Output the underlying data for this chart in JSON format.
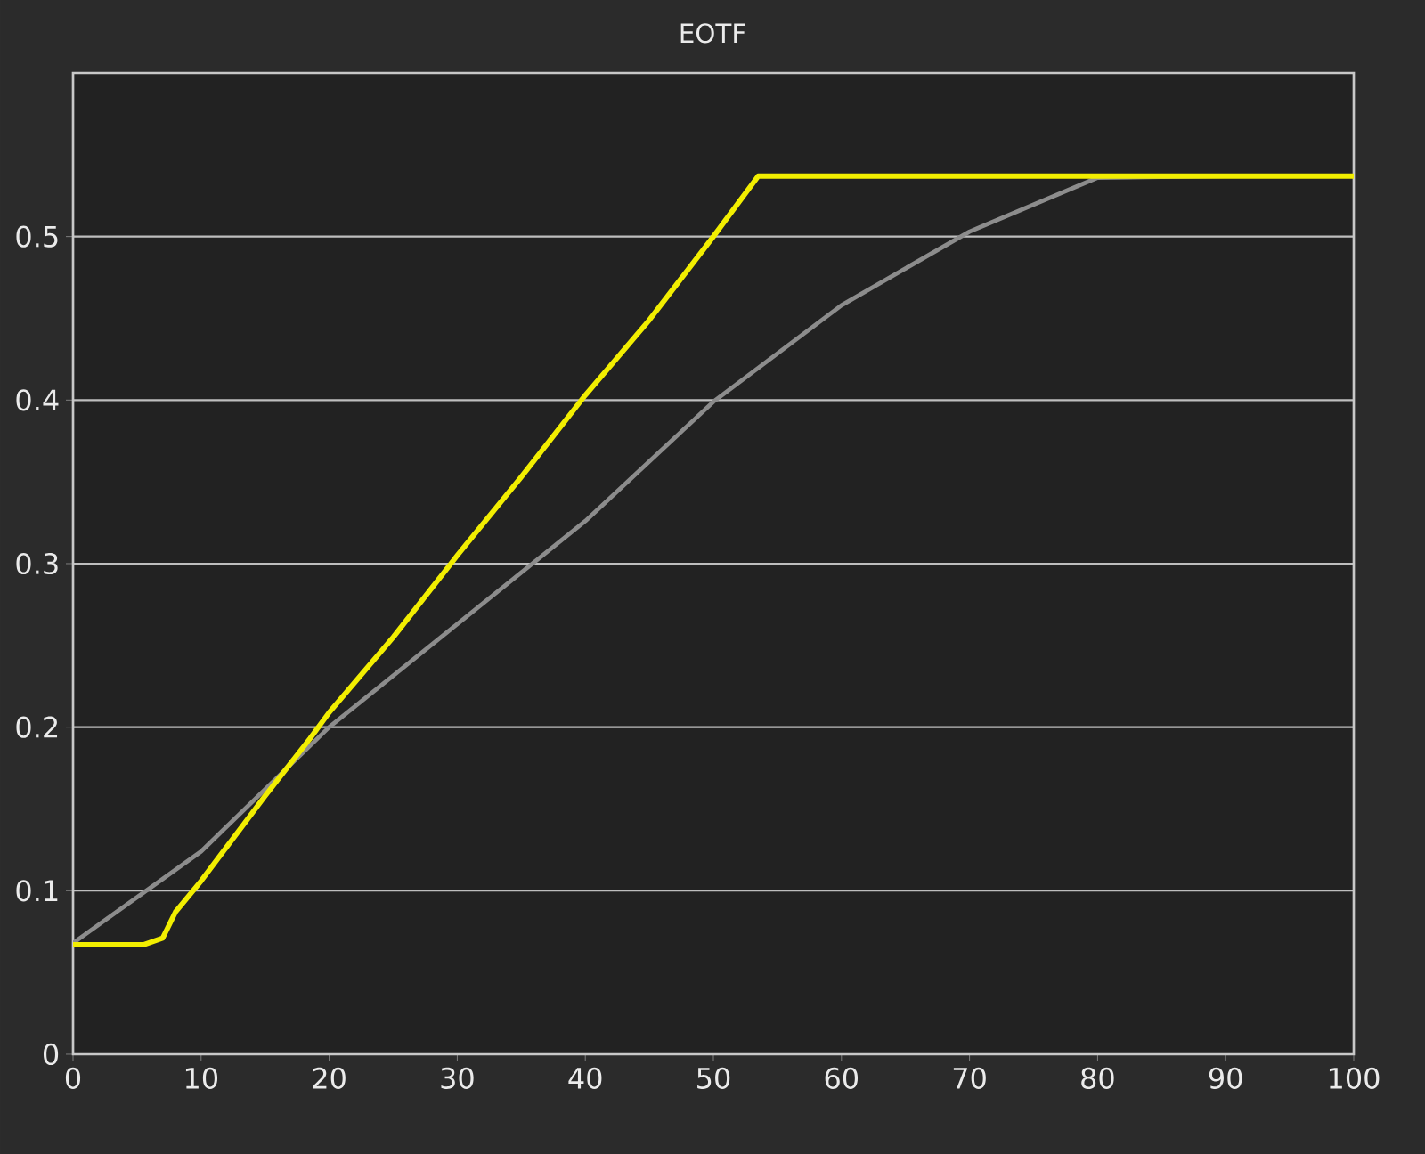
{
  "chart_data": {
    "type": "line",
    "title": "EOTF",
    "series": [
      {
        "color": "#8c8c8c",
        "x": [
          0,
          10,
          20,
          30,
          40,
          50,
          60,
          70,
          80,
          90,
          100
        ],
        "values": [
          0.068,
          0.124,
          0.2,
          0.263,
          0.326,
          0.399,
          0.458,
          0.503,
          0.536,
          0.537,
          0.537
        ]
      },
      {
        "color": "#f2ee00",
        "x": [
          0,
          5.5,
          7,
          8,
          10,
          15,
          18.5,
          20,
          25,
          30,
          35,
          40,
          45,
          50,
          53.5,
          60,
          70,
          80,
          90,
          100
        ],
        "values": [
          0.067,
          0.067,
          0.071,
          0.087,
          0.106,
          0.158,
          0.193,
          0.209,
          0.255,
          0.305,
          0.353,
          0.403,
          0.449,
          0.5,
          0.537,
          0.537,
          0.537,
          0.537,
          0.537,
          0.537
        ]
      }
    ],
    "xlim": [
      0,
      100
    ],
    "xticks": [
      0,
      10,
      20,
      30,
      40,
      50,
      60,
      70,
      80,
      90,
      100
    ],
    "ylim": [
      0,
      0.6
    ],
    "yticks": [
      0,
      0.1,
      0.2,
      0.3,
      0.4,
      0.5
    ],
    "grid": "y",
    "marker": "none",
    "line_style": "solid"
  }
}
